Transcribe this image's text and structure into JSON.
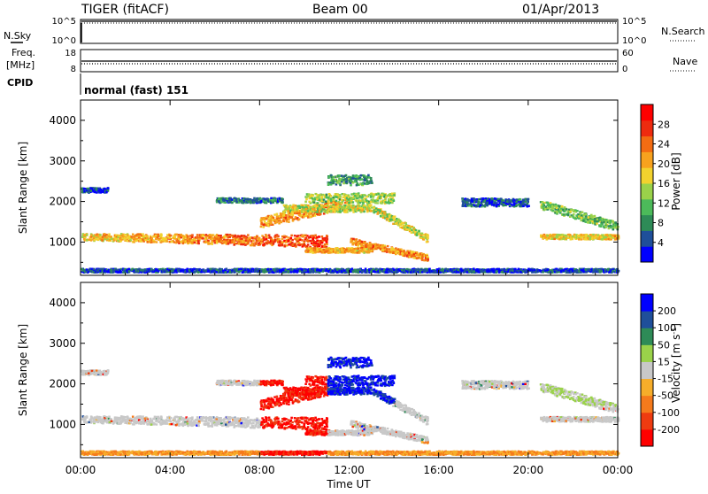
{
  "header": {
    "station": "TIGER (fitACF)",
    "beam": "Beam 00",
    "date": "01/Apr/2013"
  },
  "status_panels": {
    "nsky": {
      "label": "N.Sky",
      "top_tick": "10^5",
      "bottom_tick": "10^0"
    },
    "nsearch": {
      "label": "N.Search",
      "top_tick": "10^5",
      "bottom_tick": "10^0"
    },
    "freq": {
      "label_line1": "Freq.",
      "label_line2": "[MHz]",
      "top_tick": "18",
      "bottom_tick": "8"
    },
    "nave": {
      "label": "Nave",
      "top_tick": "60",
      "bottom_tick": "0"
    },
    "cpid": {
      "label": "CPID",
      "value": "normal (fast) 151"
    }
  },
  "chart_data": [
    {
      "type": "heatmap",
      "name": "power",
      "ylabel": "Slant Range [km]",
      "xlabel": "",
      "xlim": [
        "00:00",
        "24:00"
      ],
      "ylim": [
        180,
        4500
      ],
      "yticks": [
        1000,
        2000,
        3000,
        4000
      ],
      "colorbar": {
        "label": "Power [dB]",
        "ticks": [
          4,
          8,
          12,
          16,
          20,
          24,
          28
        ],
        "range": [
          0,
          32
        ]
      },
      "colors": [
        "#0000ff",
        "#1f4f9a",
        "#2e8b57",
        "#4cba5a",
        "#9ad24a",
        "#f2d22e",
        "#f7a21e",
        "#f36c12",
        "#ee2b0f",
        "#ff0000"
      ]
    },
    {
      "type": "heatmap",
      "name": "velocity",
      "ylabel": "Slant Range [km]",
      "xlabel": "Time UT",
      "xlim": [
        "00:00",
        "24:00"
      ],
      "ylim": [
        180,
        4500
      ],
      "yticks": [
        1000,
        2000,
        3000,
        4000
      ],
      "xticks": [
        "00:00",
        "04:00",
        "08:00",
        "12:00",
        "16:00",
        "20:00",
        "00:00"
      ],
      "colorbar": {
        "label": "Velocity [m s-1]",
        "ticks": [
          200,
          100,
          50,
          15,
          -15,
          -50,
          -100,
          -200
        ]
      },
      "colors": [
        "#ff0000",
        "#ee3b10",
        "#f57a1c",
        "#f6ad2a",
        "#c8c8c8",
        "#9ad24a",
        "#2e8b57",
        "#1f4f9a",
        "#0000ff"
      ]
    }
  ]
}
